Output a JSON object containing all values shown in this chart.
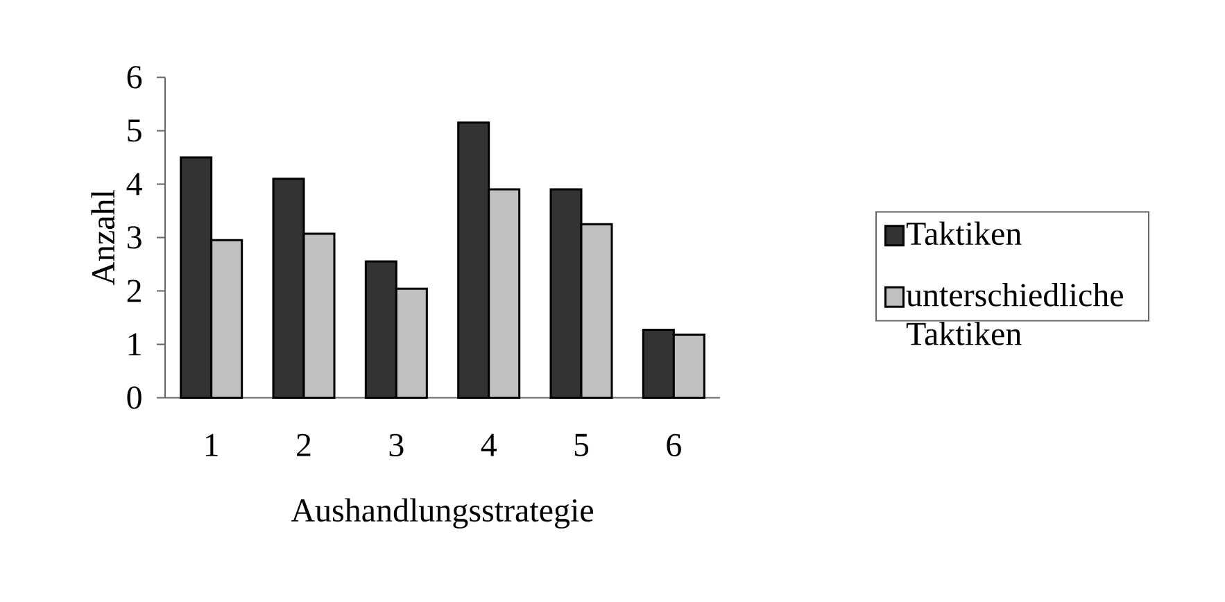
{
  "chart_data": {
    "type": "bar",
    "xlabel": "Aushandlungsstrategie",
    "ylabel": "Anzahl",
    "categories": [
      "1",
      "2",
      "3",
      "4",
      "5",
      "6"
    ],
    "series": [
      {
        "name": "Taktiken",
        "color": "#333333",
        "values": [
          4.5,
          4.1,
          2.55,
          5.15,
          3.9,
          1.27
        ]
      },
      {
        "name": "unterschiedliche Taktiken",
        "color": "#c0c0c0",
        "values": [
          2.95,
          3.07,
          2.04,
          3.9,
          3.25,
          1.18
        ]
      }
    ],
    "ylim": [
      0,
      6
    ],
    "yticks": [
      0,
      1,
      2,
      3,
      4,
      5,
      6
    ],
    "legend": "right"
  }
}
